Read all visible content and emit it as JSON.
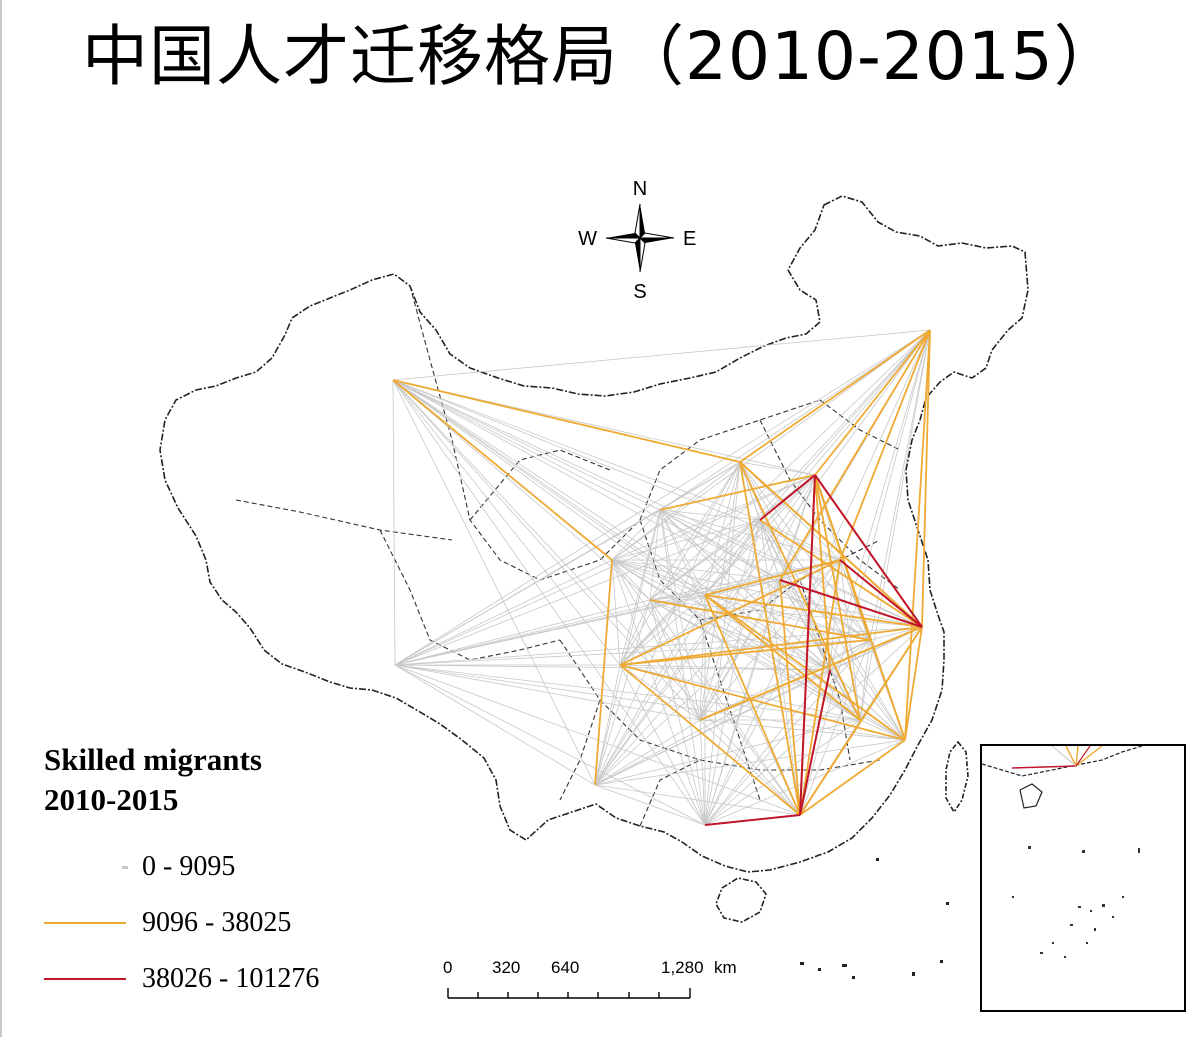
{
  "title": "中国人才迁移格局（2010-2015）",
  "compass": {
    "north": "N",
    "south": "S",
    "east": "E",
    "west": "W"
  },
  "legend": {
    "title_line1": "Skilled migrants",
    "title_line2": "2010-2015",
    "classes": [
      {
        "label": "0 - 9095",
        "color": "#c8c8c8"
      },
      {
        "label": "9096 - 38025",
        "color": "#eeaa33"
      },
      {
        "label": "38026 - 101276",
        "color": "#c0152a"
      }
    ]
  },
  "scale_bar": {
    "ticks": [
      "0",
      "320",
      "640",
      "1,280"
    ],
    "unit": "km"
  },
  "colors": {
    "minor_flow": "#c8c8c8",
    "medium_flow": "#eeaa33",
    "major_flow": "#c0152a",
    "boundary": "#222222"
  }
}
